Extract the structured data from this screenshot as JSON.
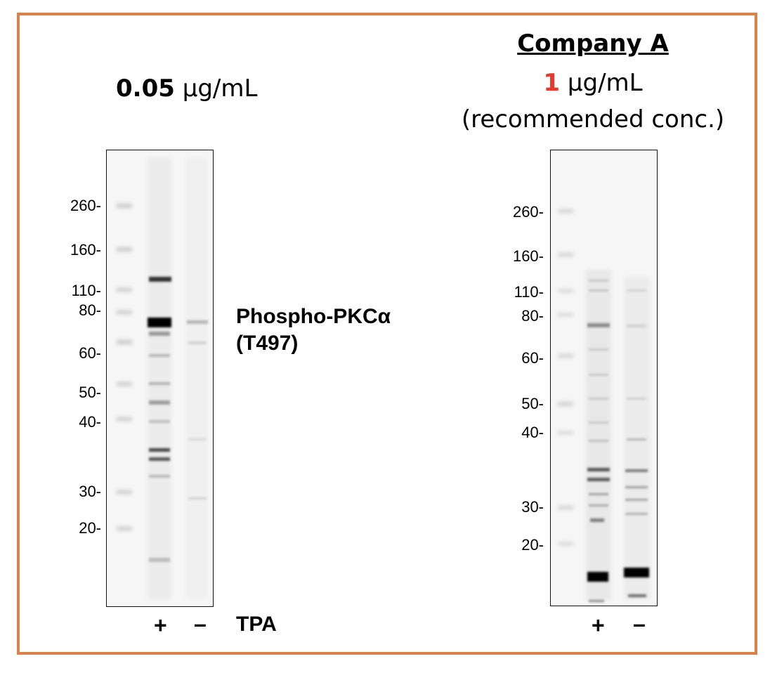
{
  "left_panel": {
    "conc_value": "0.05",
    "conc_unit": "μg/mL",
    "mw_markers": [
      "260-",
      "160-",
      "110-",
      "80-",
      "60-",
      "50-",
      "40-",
      "30-",
      "20-"
    ],
    "target_line1": "Phospho-PKCα",
    "target_line2": "(T497)",
    "lane_plus": "+",
    "lane_minus": "–",
    "treatment": "TPA"
  },
  "right_panel": {
    "company": "Company A",
    "conc_value": "1",
    "conc_unit": "μg/mL",
    "recommended": "(recommended conc.)",
    "mw_markers": [
      "260-",
      "160-",
      "110-",
      "80-",
      "60-",
      "50-",
      "40-",
      "30-",
      "20-"
    ],
    "lane_plus": "+",
    "lane_minus": "–"
  },
  "colors": {
    "frame": "#d9834a",
    "highlight": "#e8392b"
  }
}
